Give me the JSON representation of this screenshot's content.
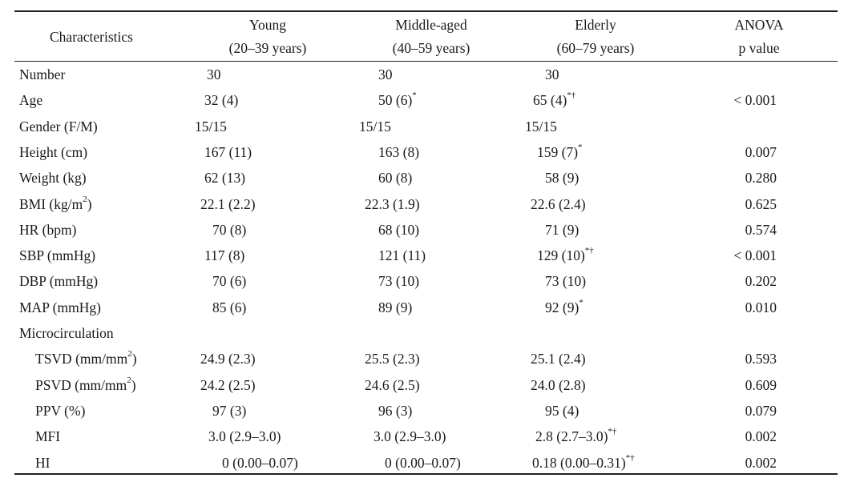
{
  "headers": {
    "characteristics": "Characteristics",
    "young": "Young",
    "young_range": "(20–39 years)",
    "middle": "Middle-aged",
    "middle_range": "(40–59 years)",
    "elderly": "Elderly",
    "elderly_range": "(60–79 years)",
    "anova": "ANOVA",
    "pvalue": "p value"
  },
  "rows": [
    {
      "label": "Number",
      "label_sup": "",
      "young": "30",
      "young_sup": "",
      "middle": "30",
      "middle_sup": "",
      "elderly": "30",
      "elderly_sup": "",
      "p": ""
    },
    {
      "label": "Age",
      "label_sup": "",
      "young": "32 (4)",
      "young_sup": "",
      "middle": "50 (6)",
      "middle_sup": "*",
      "elderly": "65 (4)",
      "elderly_sup": "*†",
      "p": "< 0.001"
    },
    {
      "label": "Gender (F/M)",
      "label_sup": "",
      "young": "15/15",
      "young_sup": "",
      "middle": "15/15",
      "middle_sup": "",
      "elderly": "15/15",
      "elderly_sup": "",
      "p": ""
    },
    {
      "label": "Height (cm)",
      "label_sup": "",
      "young": "167 (11)",
      "young_sup": "",
      "middle": "163 (8)",
      "middle_sup": "",
      "elderly": "159 (7)",
      "elderly_sup": "*",
      "p": "0.007"
    },
    {
      "label": "Weight (kg)",
      "label_sup": "",
      "young": "62 (13)",
      "young_sup": "",
      "middle": "60 (8)",
      "middle_sup": "",
      "elderly": "58 (9)",
      "elderly_sup": "",
      "p": "0.280"
    },
    {
      "label": "BMI (kg/m",
      "label_sup": "2",
      "label_tail": ")",
      "young": "22.1 (2.2)",
      "young_sup": "",
      "middle": "22.3 (1.9)",
      "middle_sup": "",
      "elderly": "22.6 (2.4)",
      "elderly_sup": "",
      "p": "0.625"
    },
    {
      "label": "HR (bpm)",
      "label_sup": "",
      "young": "70 (8)",
      "young_sup": "",
      "middle": "68 (10)",
      "middle_sup": "",
      "elderly": "71 (9)",
      "elderly_sup": "",
      "p": "0.574"
    },
    {
      "label": "SBP (mmHg)",
      "label_sup": "",
      "young": "117 (8)",
      "young_sup": "",
      "middle": "121 (11)",
      "middle_sup": "",
      "elderly": "129 (10)",
      "elderly_sup": "*†",
      "p": "< 0.001"
    },
    {
      "label": "DBP (mmHg)",
      "label_sup": "",
      "young": "70 (6)",
      "young_sup": "",
      "middle": "73 (10)",
      "middle_sup": "",
      "elderly": "73 (10)",
      "elderly_sup": "",
      "p": "0.202"
    },
    {
      "label": "MAP (mmHg)",
      "label_sup": "",
      "young": "85 (6)",
      "young_sup": "",
      "middle": "89 (9)",
      "middle_sup": "",
      "elderly": "92 (9)",
      "elderly_sup": "*",
      "p": "0.010"
    },
    {
      "label": "Microcirculation",
      "label_sup": "",
      "young": "",
      "young_sup": "",
      "middle": "",
      "middle_sup": "",
      "elderly": "",
      "elderly_sup": "",
      "p": ""
    },
    {
      "label": "TSVD (mm/mm",
      "label_sup": "2",
      "label_tail": ")",
      "young": "24.9 (2.3)",
      "young_sup": "",
      "middle": "25.5 (2.3)",
      "middle_sup": "",
      "elderly": "25.1 (2.4)",
      "elderly_sup": "",
      "p": "0.593"
    },
    {
      "label": "PSVD (mm/mm",
      "label_sup": "2",
      "label_tail": ")",
      "young": "24.2 (2.5)",
      "young_sup": "",
      "middle": "24.6 (2.5)",
      "middle_sup": "",
      "elderly": "24.0 (2.8)",
      "elderly_sup": "",
      "p": "0.609"
    },
    {
      "label": "PPV (%)",
      "label_sup": "",
      "young": "97 (3)",
      "young_sup": "",
      "middle": "96 (3)",
      "middle_sup": "",
      "elderly": "95 (4)",
      "elderly_sup": "",
      "p": "0.079"
    },
    {
      "label": "MFI",
      "label_sup": "",
      "young": "3.0 (2.9–3.0)",
      "young_sup": "",
      "middle": "3.0 (2.9–3.0)",
      "middle_sup": "",
      "elderly": "2.8 (2.7–3.0)",
      "elderly_sup": "*†",
      "p": "0.002"
    },
    {
      "label": "HI",
      "label_sup": "",
      "young": "0 (0.00–0.07)",
      "young_sup": "",
      "middle": "0 (0.00–0.07)",
      "middle_sup": "",
      "elderly": "0.18 (0.00–0.31)",
      "elderly_sup": "*†",
      "p": "0.002"
    }
  ]
}
